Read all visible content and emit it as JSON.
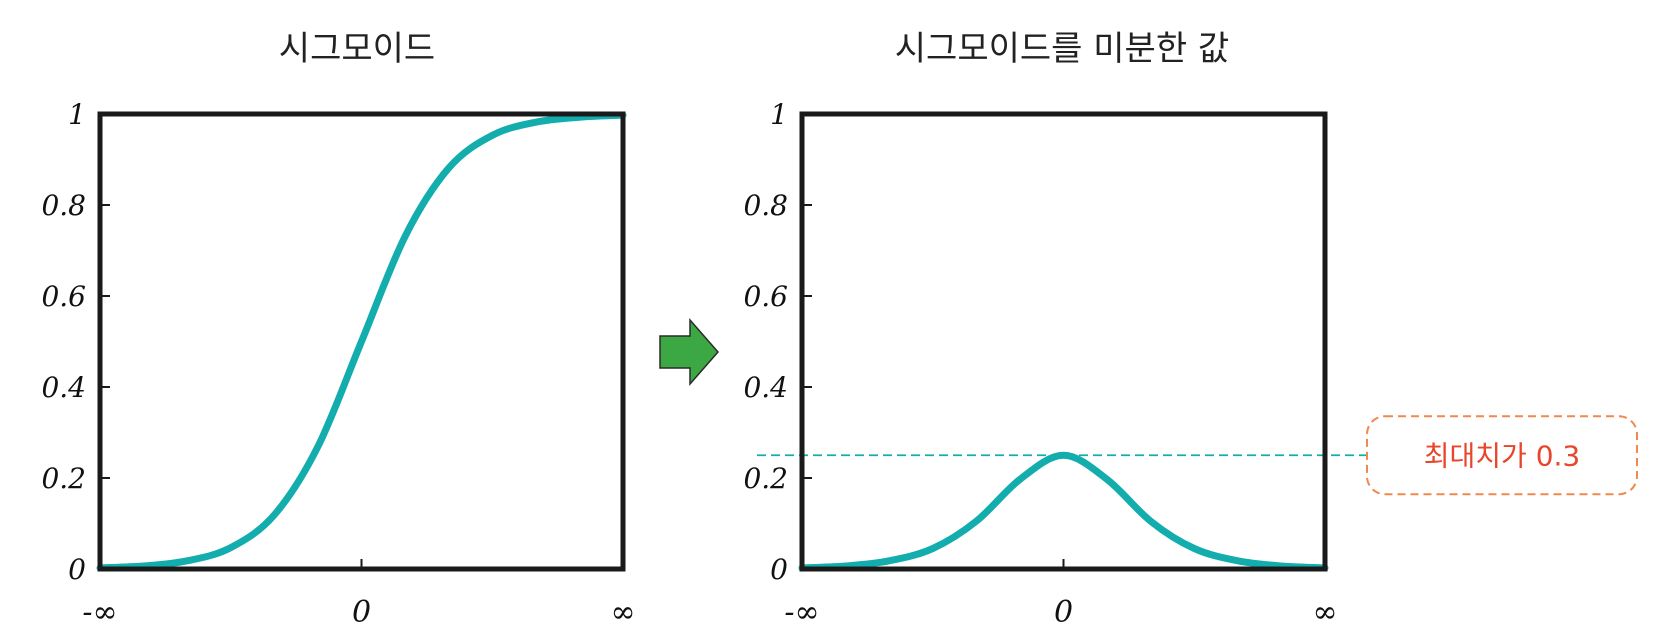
{
  "chart_data": [
    {
      "type": "line",
      "title": "시그모이드",
      "x_tick_labels": [
        "-∞",
        "0",
        "∞"
      ],
      "y_tick_labels": [
        "0",
        "0.2",
        "0.4",
        "0.6",
        "0.8",
        "1"
      ],
      "y_ticks": [
        0,
        0.2,
        0.4,
        0.6,
        0.8,
        1
      ],
      "xlim": [
        -6,
        6
      ],
      "ylim": [
        0,
        1
      ],
      "series": [
        {
          "x": [
            -6,
            -5,
            -4,
            -3,
            -2,
            -1,
            0,
            1,
            2,
            3,
            4,
            5,
            6
          ],
          "y": [
            0.0025,
            0.0067,
            0.018,
            0.047,
            0.119,
            0.269,
            0.5,
            0.731,
            0.881,
            0.953,
            0.982,
            0.993,
            0.9975
          ]
        }
      ],
      "color": "#13ADAD",
      "grid": false
    },
    {
      "type": "line",
      "title": "시그모이드를 미분한 값",
      "x_tick_labels": [
        "-∞",
        "0",
        "∞"
      ],
      "y_tick_labels": [
        "0",
        "0.2",
        "0.4",
        "0.6",
        "0.8",
        "1"
      ],
      "y_ticks": [
        0,
        0.2,
        0.4,
        0.6,
        0.8,
        1
      ],
      "xlim": [
        -6,
        6
      ],
      "ylim": [
        0,
        1
      ],
      "series": [
        {
          "x": [
            -6,
            -5,
            -4,
            -3,
            -2,
            -1,
            0,
            1,
            2,
            3,
            4,
            5,
            6
          ],
          "y": [
            0.0025,
            0.0066,
            0.018,
            0.045,
            0.105,
            0.197,
            0.25,
            0.197,
            0.105,
            0.045,
            0.018,
            0.0066,
            0.0025
          ]
        }
      ],
      "color": "#13ADAD",
      "grid": false,
      "reference_line": {
        "y": 0.25,
        "style": "dashed",
        "color": "#13ADAD"
      },
      "annotation": {
        "text": "최대치가 0.3",
        "color": "#E8452A",
        "border_color": "#F0894F"
      }
    }
  ],
  "arrow": {
    "color": "#3BA843",
    "icon": "right-arrow-icon"
  }
}
